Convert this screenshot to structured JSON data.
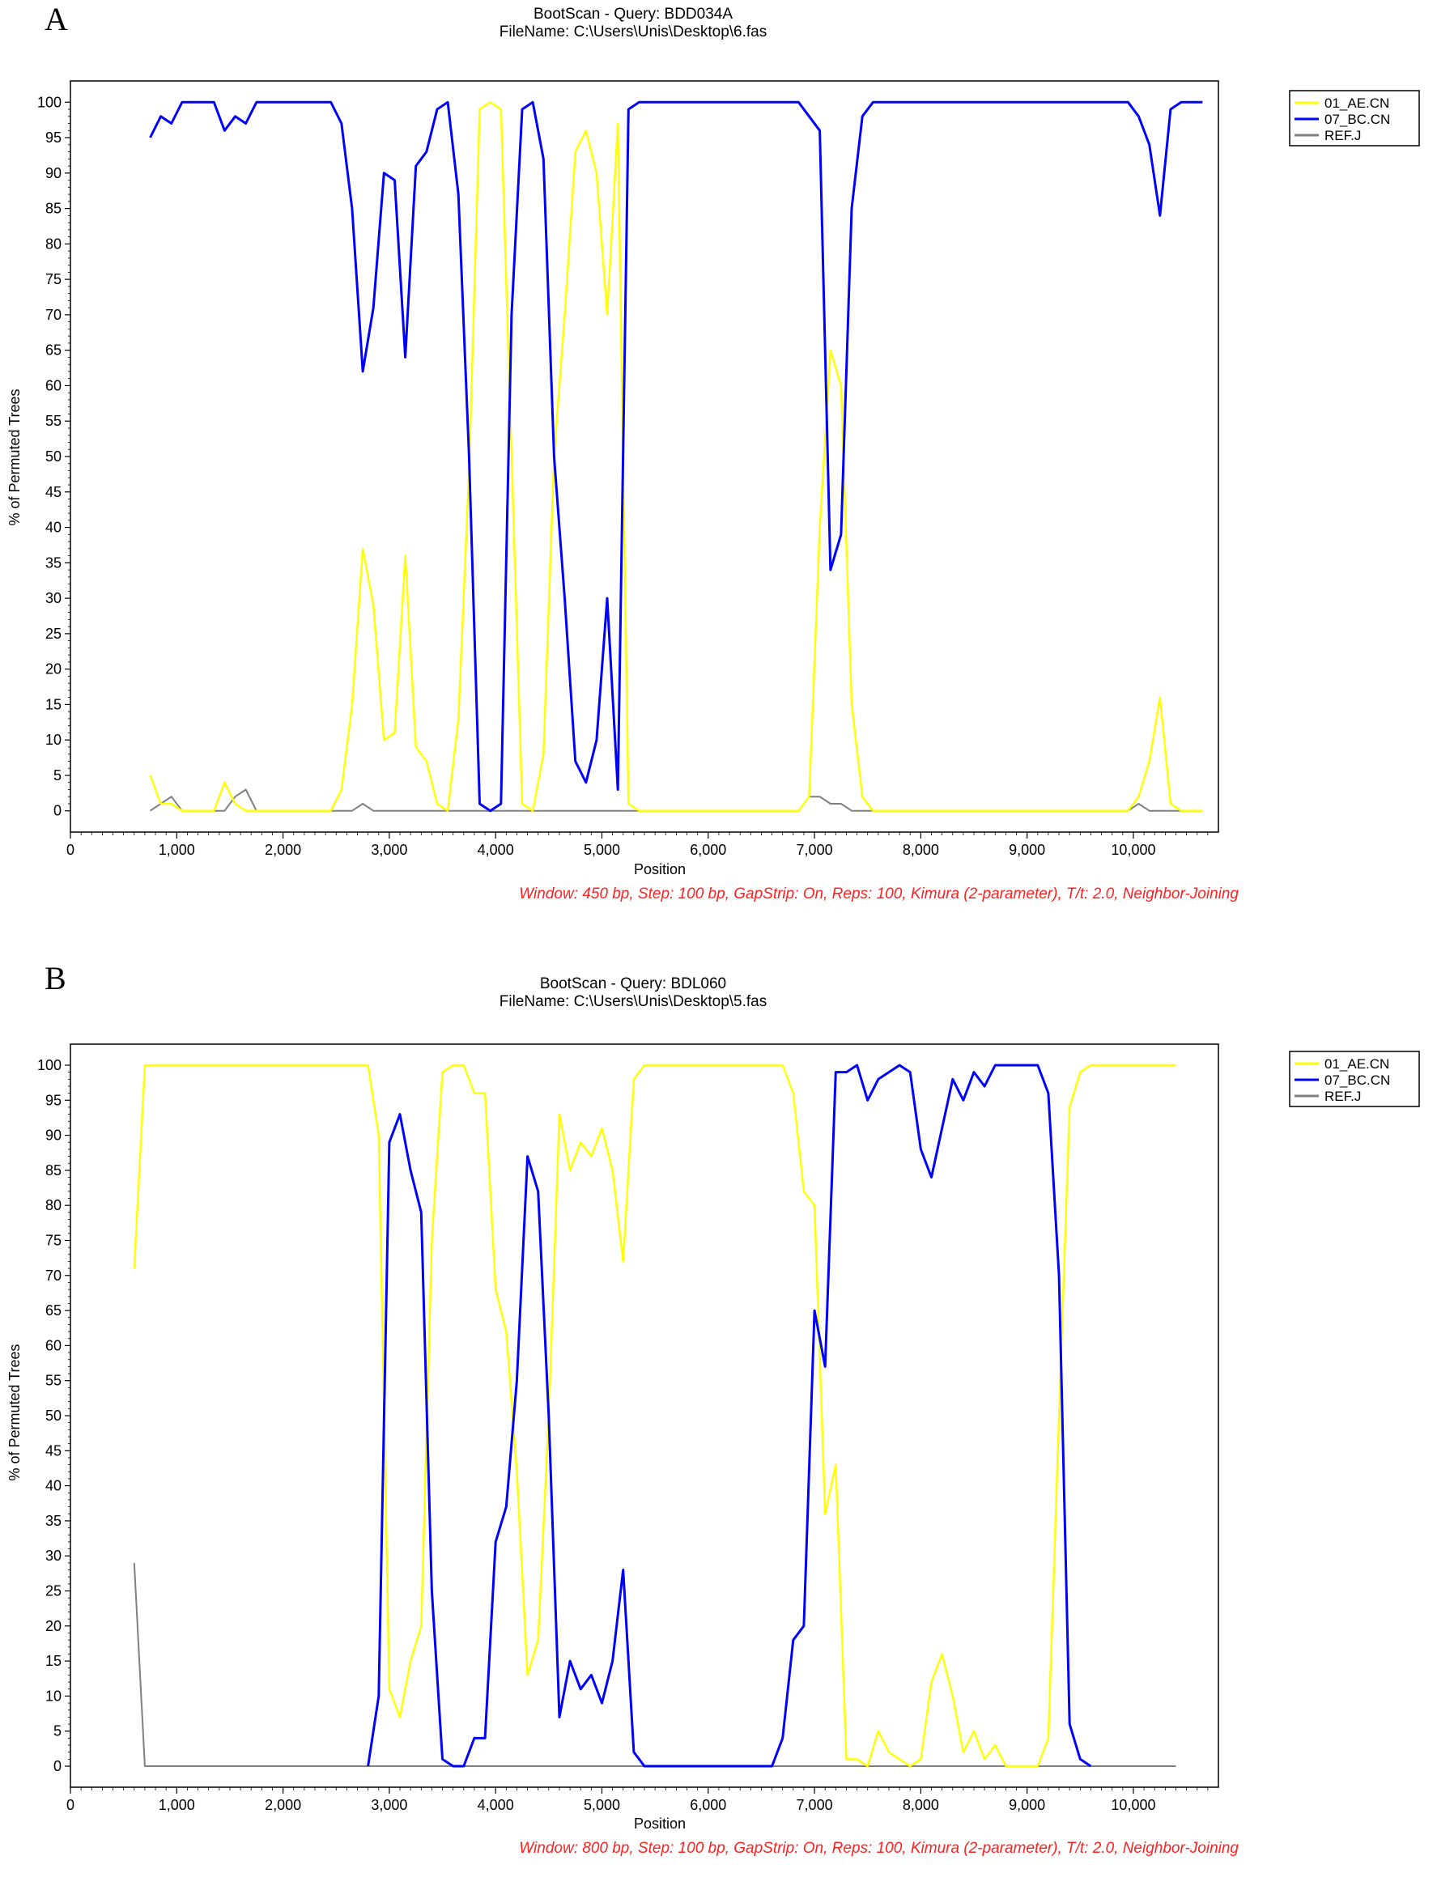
{
  "chart_data": [
    {
      "type": "line",
      "panel_label": "A",
      "title": "BootScan - Query: BDD034A",
      "subtitle": "FileName: C:\\Users\\Unis\\Desktop\\6.fas",
      "xlabel": "Position",
      "ylabel": "% of Permuted Trees",
      "xlim": [
        0,
        10800
      ],
      "ylim": [
        -3,
        103
      ],
      "xticks": [
        0,
        1000,
        2000,
        3000,
        4000,
        5000,
        6000,
        7000,
        8000,
        9000,
        10000
      ],
      "xtick_labels": [
        "0",
        "1,000",
        "2,000",
        "3,000",
        "4,000",
        "5,000",
        "6,000",
        "7,000",
        "8,000",
        "9,000",
        "10,000"
      ],
      "yticks": [
        0,
        5,
        10,
        15,
        20,
        25,
        30,
        35,
        40,
        45,
        50,
        55,
        60,
        65,
        70,
        75,
        80,
        85,
        90,
        95,
        100
      ],
      "settings_text": "Window: 450 bp, Step: 100 bp, GapStrip: On, Reps: 100, Kimura (2-parameter), T/t: 2.0, Neighbor-Joining",
      "legend_position": "right",
      "grid": false,
      "series": [
        {
          "name": "01_AE.CN",
          "color": "#ffff00",
          "x": [
            750,
            850,
            950,
            1050,
            1150,
            1250,
            1350,
            1450,
            1550,
            1650,
            1750,
            1850,
            1950,
            2050,
            2150,
            2250,
            2350,
            2450,
            2550,
            2650,
            2750,
            2850,
            2950,
            3050,
            3150,
            3250,
            3350,
            3450,
            3550,
            3650,
            3750,
            3850,
            3950,
            4050,
            4150,
            4250,
            4350,
            4450,
            4550,
            4650,
            4750,
            4850,
            4950,
            5050,
            5150,
            5250,
            5350,
            5450,
            6750,
            6850,
            6950,
            7050,
            7150,
            7250,
            7350,
            7450,
            7550,
            7650,
            9850,
            9950,
            10050,
            10150,
            10250,
            10350,
            10450,
            10550,
            10650
          ],
          "y": [
            5,
            1,
            1,
            0,
            0,
            0,
            0,
            4,
            1,
            0,
            0,
            0,
            0,
            0,
            0,
            0,
            0,
            0,
            3,
            15,
            37,
            29,
            10,
            11,
            36,
            9,
            7,
            1,
            0,
            13,
            48,
            99,
            100,
            99,
            50,
            1,
            0,
            8,
            50,
            70,
            93,
            96,
            90,
            70,
            97,
            1,
            0,
            0,
            0,
            0,
            2,
            40,
            65,
            60,
            15,
            2,
            0,
            0,
            0,
            0,
            2,
            7,
            16,
            1,
            0,
            0,
            0
          ]
        },
        {
          "name": "07_BC.CN",
          "color": "#0000ff",
          "x": [
            750,
            850,
            950,
            1050,
            1150,
            1250,
            1350,
            1450,
            1550,
            1650,
            1750,
            1850,
            1950,
            2050,
            2150,
            2250,
            2350,
            2450,
            2550,
            2650,
            2750,
            2850,
            2950,
            3050,
            3150,
            3250,
            3350,
            3450,
            3550,
            3650,
            3750,
            3850,
            3950,
            4050,
            4150,
            4250,
            4350,
            4450,
            4550,
            4650,
            4750,
            4850,
            4950,
            5050,
            5150,
            5250,
            5350,
            5450,
            6750,
            6850,
            6950,
            7050,
            7150,
            7250,
            7350,
            7450,
            7550,
            7650,
            9850,
            9950,
            10050,
            10150,
            10250,
            10350,
            10450,
            10550,
            10650
          ],
          "y": [
            95,
            98,
            97,
            100,
            100,
            100,
            100,
            96,
            98,
            97,
            100,
            100,
            100,
            100,
            100,
            100,
            100,
            100,
            97,
            85,
            62,
            71,
            90,
            89,
            64,
            91,
            93,
            99,
            100,
            87,
            50,
            1,
            0,
            1,
            70,
            99,
            100,
            92,
            50,
            30,
            7,
            4,
            10,
            30,
            3,
            99,
            100,
            100,
            100,
            100,
            98,
            96,
            34,
            39,
            85,
            98,
            100,
            100,
            100,
            100,
            98,
            94,
            84,
            99,
            100,
            100,
            100
          ]
        },
        {
          "name": "REF.J",
          "color": "#808080",
          "x": [
            750,
            850,
            950,
            1050,
            1150,
            1250,
            1350,
            1450,
            1550,
            1650,
            1750,
            1850,
            1950,
            2050,
            2150,
            2250,
            2350,
            2450,
            2550,
            2650,
            2750,
            2850,
            2950,
            3050,
            3150,
            3250,
            3350,
            3450,
            3550,
            3650,
            3750,
            3850,
            3950,
            4050,
            4150,
            4250,
            4350,
            4450,
            4550,
            4650,
            4750,
            4850,
            4950,
            5050,
            5150,
            5250,
            5350,
            5450,
            6750,
            6850,
            6950,
            7050,
            7150,
            7250,
            7350,
            7450,
            7550,
            7650,
            9850,
            9950,
            10050,
            10150,
            10250,
            10350,
            10450,
            10550,
            10650
          ],
          "y": [
            0,
            1,
            2,
            0,
            0,
            0,
            0,
            0,
            2,
            3,
            0,
            0,
            0,
            0,
            0,
            0,
            0,
            0,
            0,
            0,
            1,
            0,
            0,
            0,
            0,
            0,
            0,
            0,
            0,
            0,
            0,
            0,
            0,
            0,
            0,
            0,
            0,
            0,
            0,
            0,
            0,
            0,
            0,
            0,
            0,
            0,
            0,
            0,
            0,
            0,
            2,
            2,
            1,
            1,
            0,
            0,
            0,
            0,
            0,
            0,
            1,
            0,
            0,
            0,
            0,
            0,
            0
          ]
        }
      ]
    },
    {
      "type": "line",
      "panel_label": "B",
      "title": "BootScan - Query: BDL060",
      "subtitle": "FileName: C:\\Users\\Unis\\Desktop\\5.fas",
      "xlabel": "Position",
      "ylabel": "% of Permuted Trees",
      "xlim": [
        0,
        10800
      ],
      "ylim": [
        -3,
        103
      ],
      "xticks": [
        0,
        1000,
        2000,
        3000,
        4000,
        5000,
        6000,
        7000,
        8000,
        9000,
        10000
      ],
      "xtick_labels": [
        "0",
        "1,000",
        "2,000",
        "3,000",
        "4,000",
        "5,000",
        "6,000",
        "7,000",
        "8,000",
        "9,000",
        "10,000"
      ],
      "yticks": [
        0,
        5,
        10,
        15,
        20,
        25,
        30,
        35,
        40,
        45,
        50,
        55,
        60,
        65,
        70,
        75,
        80,
        85,
        90,
        95,
        100
      ],
      "settings_text": "Window: 800 bp, Step: 100 bp, GapStrip: On, Reps: 100, Kimura (2-parameter), T/t: 2.0, Neighbor-Joining",
      "legend_position": "right",
      "grid": false,
      "series": [
        {
          "name": "01_AE.CN",
          "color": "#ffff00",
          "x": [
            600,
            700,
            800,
            900,
            1000,
            2700,
            2800,
            2900,
            3000,
            3100,
            3200,
            3300,
            3400,
            3500,
            3600,
            3700,
            3800,
            3900,
            4000,
            4100,
            4200,
            4300,
            4400,
            4500,
            4600,
            4700,
            4800,
            4900,
            5000,
            5100,
            5200,
            5300,
            5400,
            5500,
            6600,
            6700,
            6800,
            6900,
            7000,
            7100,
            7200,
            7300,
            7400,
            7500,
            7600,
            7700,
            7800,
            7900,
            8000,
            8100,
            8200,
            8300,
            8400,
            8500,
            8600,
            8700,
            8800,
            8900,
            9000,
            9100,
            9200,
            9300,
            9400,
            9500,
            9600,
            9700,
            10400
          ],
          "y": [
            71,
            100,
            100,
            100,
            100,
            100,
            100,
            90,
            11,
            7,
            15,
            20,
            75,
            99,
            100,
            100,
            96,
            96,
            68,
            62,
            42,
            13,
            18,
            50,
            93,
            85,
            89,
            87,
            91,
            85,
            72,
            98,
            100,
            100,
            100,
            100,
            96,
            82,
            80,
            36,
            43,
            1,
            1,
            0,
            5,
            2,
            1,
            0,
            1,
            12,
            16,
            10,
            2,
            5,
            1,
            3,
            0,
            0,
            0,
            0,
            4,
            50,
            94,
            99,
            100,
            100,
            100
          ]
        },
        {
          "name": "07_BC.CN",
          "color": "#0000ff",
          "x": [
            2800,
            2900,
            3000,
            3100,
            3200,
            3300,
            3400,
            3500,
            3600,
            3700,
            3800,
            3900,
            4000,
            4100,
            4200,
            4300,
            4400,
            4500,
            4600,
            4700,
            4800,
            4900,
            5000,
            5100,
            5200,
            5300,
            5400,
            6600,
            6700,
            6800,
            6900,
            7000,
            7100,
            7200,
            7300,
            7400,
            7500,
            7600,
            7700,
            7800,
            7900,
            8000,
            8100,
            8200,
            8300,
            8400,
            8500,
            8600,
            8700,
            8800,
            8900,
            9000,
            9100,
            9200,
            9300,
            9400,
            9500,
            9600
          ],
          "y": [
            0,
            10,
            89,
            93,
            85,
            79,
            25,
            1,
            0,
            0,
            4,
            4,
            32,
            37,
            55,
            87,
            82,
            50,
            7,
            15,
            11,
            13,
            9,
            15,
            28,
            2,
            0,
            0,
            4,
            18,
            20,
            65,
            57,
            99,
            99,
            100,
            95,
            98,
            99,
            100,
            99,
            88,
            84,
            91,
            98,
            95,
            99,
            97,
            100,
            100,
            100,
            100,
            100,
            96,
            70,
            6,
            1,
            0
          ]
        },
        {
          "name": "REF.J",
          "color": "#808080",
          "x": [
            600,
            700,
            800,
            10400
          ],
          "y": [
            29,
            0,
            0,
            0
          ]
        }
      ]
    }
  ]
}
